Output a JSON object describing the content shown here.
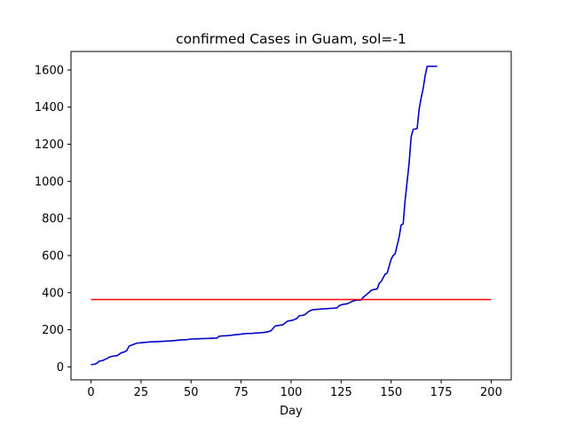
{
  "chart_data": {
    "type": "line",
    "title": "confirmed Cases in Guam, sol=-1",
    "xlabel": "Day",
    "ylabel": "",
    "xlim": [
      -10,
      210
    ],
    "ylim": [
      -70,
      1700
    ],
    "xticks": [
      0,
      25,
      50,
      75,
      100,
      125,
      150,
      175,
      200
    ],
    "yticks": [
      0,
      200,
      400,
      600,
      800,
      1000,
      1200,
      1400,
      1600
    ],
    "grid": false,
    "series": [
      {
        "color": "#0000cc",
        "x": [
          0,
          2,
          3,
          4,
          6,
          8,
          9,
          11,
          13,
          15,
          17,
          18,
          19,
          21,
          23,
          25,
          28,
          30,
          33,
          35,
          38,
          40,
          43,
          45,
          48,
          50,
          53,
          55,
          58,
          60,
          63,
          64,
          66,
          68,
          70,
          72,
          74,
          76,
          78,
          80,
          82,
          84,
          86,
          88,
          90,
          92,
          93,
          95,
          96,
          98,
          99,
          101,
          103,
          104,
          106,
          107,
          109,
          110,
          111,
          113,
          115,
          117,
          119,
          121,
          123,
          124,
          126,
          128,
          130,
          131,
          133,
          135,
          136,
          138,
          140,
          141,
          143,
          144,
          145,
          147,
          148,
          150,
          151,
          152,
          154,
          155,
          156,
          157,
          158,
          159,
          160,
          161,
          162,
          163,
          164,
          165,
          166,
          167,
          168,
          169,
          170,
          171,
          172,
          173
        ],
        "y": [
          12,
          15,
          20,
          30,
          35,
          45,
          52,
          58,
          60,
          75,
          82,
          90,
          112,
          120,
          128,
          130,
          133,
          135,
          136,
          137,
          139,
          140,
          143,
          145,
          147,
          150,
          151,
          152,
          153,
          154,
          155,
          165,
          167,
          168,
          170,
          173,
          175,
          178,
          180,
          180,
          182,
          183,
          185,
          188,
          195,
          220,
          222,
          225,
          228,
          245,
          248,
          252,
          262,
          275,
          278,
          282,
          300,
          305,
          308,
          310,
          312,
          313,
          315,
          316,
          318,
          330,
          337,
          340,
          350,
          355,
          360,
          360,
          375,
          392,
          412,
          416,
          420,
          450,
          460,
          500,
          505,
          580,
          600,
          610,
          700,
          765,
          770,
          900,
          1000,
          1100,
          1240,
          1280,
          1282,
          1285,
          1390,
          1450,
          1500,
          1570,
          1620,
          1620,
          1620,
          1620,
          1620,
          1620
        ]
      },
      {
        "color": "#ff0000",
        "x": [
          0,
          200
        ],
        "y": [
          363,
          363
        ]
      }
    ]
  }
}
